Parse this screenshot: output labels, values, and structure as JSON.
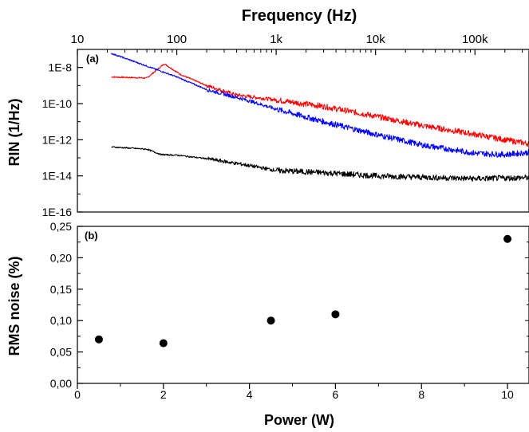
{
  "chart_data": [
    {
      "type": "line",
      "panel_label": "(a)",
      "xlabel": "Frequency (Hz)",
      "ylabel": "RIN (1/Hz)",
      "x_scale": "log",
      "y_scale": "log",
      "xlim": [
        10,
        350000
      ],
      "ylim": [
        1e-16,
        1e-07
      ],
      "x_ticks": [
        10,
        100,
        1000,
        10000,
        100000
      ],
      "x_tick_labels": [
        "10",
        "100",
        "1k",
        "10k",
        "100k"
      ],
      "y_ticks": [
        1e-08,
        1e-10,
        1e-12,
        1e-14,
        1e-16
      ],
      "y_tick_labels": [
        "1E-8",
        "1E-10",
        "1E-12",
        "1E-14",
        "1E-16"
      ],
      "x_axis_position": "top",
      "grid": false,
      "series": [
        {
          "color": "#ff0000",
          "x": [
            22,
            50,
            75,
            110,
            200,
            400,
            1000,
            3000,
            10000,
            30000,
            100000,
            200000,
            350000
          ],
          "y": [
            3e-09,
            2.6e-09,
            1.6e-08,
            4e-09,
            1e-09,
            3e-10,
            1.6e-10,
            7e-11,
            2e-11,
            6e-12,
            2e-12,
            1e-12,
            6e-13
          ]
        },
        {
          "color": "#0000ff",
          "x": [
            22,
            50,
            100,
            200,
            500,
            1000,
            3000,
            10000,
            30000,
            100000,
            200000,
            350000
          ],
          "y": [
            6e-08,
            1.2e-08,
            3e-09,
            6e-10,
            1.6e-10,
            5e-11,
            1e-11,
            2e-12,
            5e-13,
            1.8e-13,
            1.5e-13,
            2e-13
          ]
        },
        {
          "color": "#000000",
          "x": [
            22,
            50,
            70,
            100,
            200,
            500,
            1000,
            3000,
            10000,
            100000,
            350000
          ],
          "y": [
            4e-13,
            3e-13,
            1.5e-13,
            1.4e-13,
            9e-14,
            4e-14,
            2e-14,
            1.5e-14,
            1e-14,
            7e-15,
            8e-15
          ]
        }
      ]
    },
    {
      "type": "scatter",
      "panel_label": "(b)",
      "xlabel": "Power (W)",
      "ylabel": "RMS noise (%)",
      "xlim": [
        0,
        10.5
      ],
      "ylim": [
        0,
        0.25
      ],
      "x_ticks": [
        0,
        2,
        4,
        6,
        8,
        10
      ],
      "x_tick_labels": [
        "0",
        "2",
        "4",
        "6",
        "8",
        "10"
      ],
      "y_ticks": [
        0,
        0.05,
        0.1,
        0.15,
        0.2,
        0.25
      ],
      "y_tick_labels": [
        "0,00",
        "0,05",
        "0,10",
        "0,15",
        "0,20",
        "0,25"
      ],
      "grid": false,
      "x": [
        0.5,
        2.0,
        4.5,
        6.0,
        10.0
      ],
      "y": [
        0.07,
        0.064,
        0.1,
        0.11,
        0.23
      ]
    }
  ]
}
